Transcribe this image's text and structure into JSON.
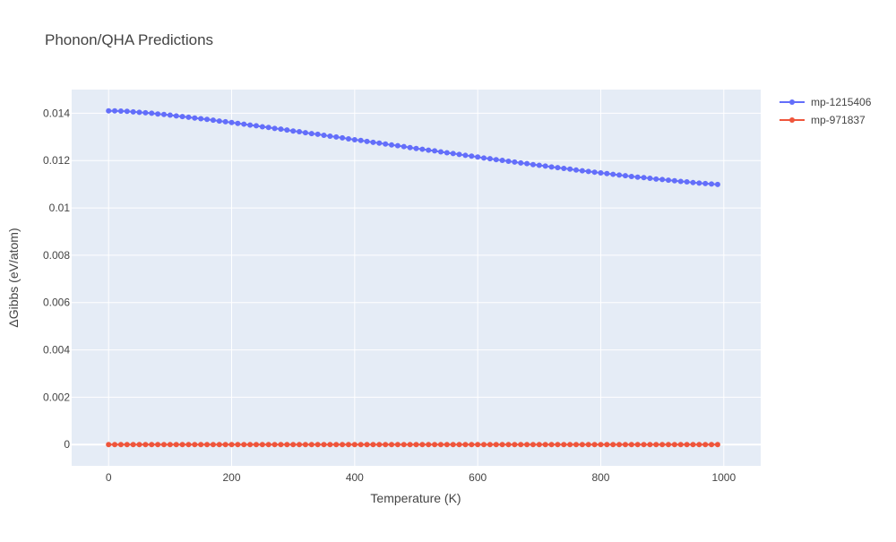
{
  "chart_data": {
    "type": "line",
    "title": "Phonon/QHA Predictions",
    "xlabel": "Temperature (K)",
    "ylabel": "ΔGibbs (eV/atom)",
    "xlim": [
      -60,
      1060
    ],
    "ylim": [
      -0.0009,
      0.015
    ],
    "x_ticks": [
      0,
      200,
      400,
      600,
      800,
      1000
    ],
    "x_tick_labels": [
      "0",
      "200",
      "400",
      "600",
      "800",
      "1000"
    ],
    "y_ticks": [
      0,
      0.002,
      0.004,
      0.006,
      0.008,
      0.01,
      0.012,
      0.014
    ],
    "y_tick_labels": [
      "0",
      "0.002",
      "0.004",
      "0.006",
      "0.008",
      "0.01",
      "0.012",
      "0.014"
    ],
    "grid": true,
    "legend_position": "top-right",
    "markers": "lines+markers",
    "x": [
      0,
      10,
      20,
      30,
      40,
      50,
      60,
      70,
      80,
      90,
      100,
      110,
      120,
      130,
      140,
      150,
      160,
      170,
      180,
      190,
      200,
      210,
      220,
      230,
      240,
      250,
      260,
      270,
      280,
      290,
      300,
      310,
      320,
      330,
      340,
      350,
      360,
      370,
      380,
      390,
      400,
      410,
      420,
      430,
      440,
      450,
      460,
      470,
      480,
      490,
      500,
      510,
      520,
      530,
      540,
      550,
      560,
      570,
      580,
      590,
      600,
      610,
      620,
      630,
      640,
      650,
      660,
      670,
      680,
      690,
      700,
      710,
      720,
      730,
      740,
      750,
      760,
      770,
      780,
      790,
      800,
      810,
      820,
      830,
      840,
      850,
      860,
      870,
      880,
      890,
      900,
      910,
      920,
      930,
      940,
      950,
      960,
      970,
      980,
      990
    ],
    "series": [
      {
        "name": "mp-1215406",
        "color": "#636efa",
        "values": [
          0.0141,
          0.0141,
          0.01409,
          0.01408,
          0.01406,
          0.01404,
          0.01402,
          0.014,
          0.01397,
          0.01395,
          0.01392,
          0.01389,
          0.01386,
          0.01383,
          0.0138,
          0.01377,
          0.01374,
          0.01371,
          0.01367,
          0.01364,
          0.01361,
          0.01357,
          0.01354,
          0.0135,
          0.01347,
          0.01343,
          0.0134,
          0.01336,
          0.01333,
          0.01329,
          0.01325,
          0.01322,
          0.01318,
          0.01314,
          0.01311,
          0.01307,
          0.01303,
          0.013,
          0.01296,
          0.01292,
          0.01288,
          0.01285,
          0.01281,
          0.01277,
          0.01274,
          0.0127,
          0.01266,
          0.01263,
          0.01259,
          0.01255,
          0.01251,
          0.01248,
          0.01244,
          0.01241,
          0.01237,
          0.01233,
          0.0123,
          0.01226,
          0.01222,
          0.01219,
          0.01215,
          0.01211,
          0.01208,
          0.01204,
          0.01201,
          0.01197,
          0.01194,
          0.0119,
          0.01187,
          0.01183,
          0.0118,
          0.01177,
          0.01173,
          0.0117,
          0.01167,
          0.01164,
          0.0116,
          0.01157,
          0.01154,
          0.01151,
          0.01148,
          0.01145,
          0.01142,
          0.01139,
          0.01136,
          0.01133,
          0.0113,
          0.01128,
          0.01125,
          0.01122,
          0.0112,
          0.01117,
          0.01115,
          0.01112,
          0.0111,
          0.01107,
          0.01105,
          0.01103,
          0.01101,
          0.01099
        ]
      },
      {
        "name": "mp-971837",
        "color": "#ef553b",
        "values": [
          0,
          0,
          0,
          0,
          0,
          0,
          0,
          0,
          0,
          0,
          0,
          0,
          0,
          0,
          0,
          0,
          0,
          0,
          0,
          0,
          0,
          0,
          0,
          0,
          0,
          0,
          0,
          0,
          0,
          0,
          0,
          0,
          0,
          0,
          0,
          0,
          0,
          0,
          0,
          0,
          0,
          0,
          0,
          0,
          0,
          0,
          0,
          0,
          0,
          0,
          0,
          0,
          0,
          0,
          0,
          0,
          0,
          0,
          0,
          0,
          0,
          0,
          0,
          0,
          0,
          0,
          0,
          0,
          0,
          0,
          0,
          0,
          0,
          0,
          0,
          0,
          0,
          0,
          0,
          0,
          0,
          0,
          0,
          0,
          0,
          0,
          0,
          0,
          0,
          0,
          0,
          0,
          0,
          0,
          0,
          0,
          0,
          0,
          0,
          0
        ]
      }
    ]
  },
  "colors": {
    "plot_background": "#e5ecf6",
    "grid": "#ffffff",
    "text": "#444444",
    "title": "#444444"
  }
}
